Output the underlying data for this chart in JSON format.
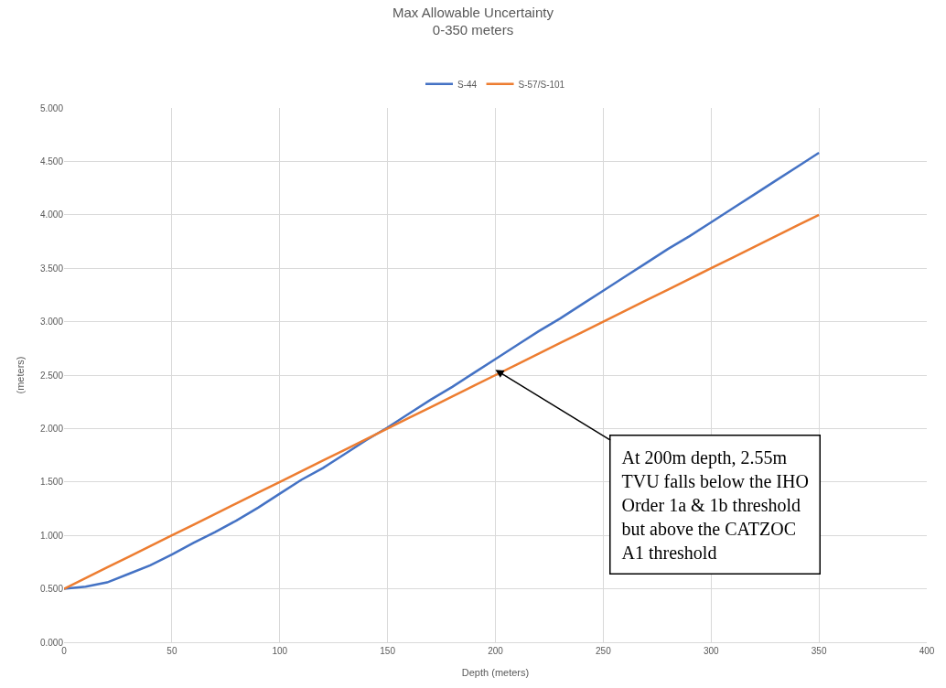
{
  "chart_data": {
    "type": "line",
    "title": "Max Allowable Uncertainty",
    "subtitle": "0-350 meters",
    "xlabel": "Depth (meters)",
    "ylabel": "(meters)",
    "x": [
      0,
      10,
      20,
      30,
      40,
      50,
      60,
      70,
      80,
      90,
      100,
      110,
      120,
      130,
      140,
      150,
      160,
      170,
      180,
      190,
      200,
      210,
      220,
      230,
      240,
      250,
      260,
      270,
      280,
      290,
      300,
      310,
      320,
      330,
      340,
      350
    ],
    "series": [
      {
        "name": "S-44",
        "color": "#4472c4",
        "values": [
          0.5,
          0.52,
          0.56,
          0.64,
          0.72,
          0.82,
          0.93,
          1.03,
          1.14,
          1.26,
          1.39,
          1.52,
          1.63,
          1.76,
          1.89,
          2.01,
          2.14,
          2.27,
          2.39,
          2.52,
          2.65,
          2.78,
          2.91,
          3.03,
          3.16,
          3.29,
          3.42,
          3.55,
          3.68,
          3.8,
          3.93,
          4.06,
          4.19,
          4.32,
          4.45,
          4.58
        ]
      },
      {
        "name": "S-57/S-101",
        "color": "#ed7d31",
        "values": [
          0.5,
          0.6,
          0.7,
          0.8,
          0.9,
          1.0,
          1.1,
          1.2,
          1.3,
          1.4,
          1.5,
          1.6,
          1.7,
          1.8,
          1.9,
          2.0,
          2.1,
          2.2,
          2.3,
          2.4,
          2.5,
          2.6,
          2.7,
          2.8,
          2.9,
          3.0,
          3.1,
          3.2,
          3.3,
          3.4,
          3.5,
          3.6,
          3.7,
          3.8,
          3.9,
          4.0
        ]
      }
    ],
    "xlim": [
      0,
      400
    ],
    "xticks": [
      0,
      50,
      100,
      150,
      200,
      250,
      300,
      350,
      400
    ],
    "ylim": [
      0,
      5
    ],
    "yticks": [
      {
        "value": 0,
        "label": "0.000"
      },
      {
        "value": 0.5,
        "label": "0.500"
      },
      {
        "value": 1,
        "label": "1.000"
      },
      {
        "value": 1.5,
        "label": "1.500"
      },
      {
        "value": 2,
        "label": "2.000"
      },
      {
        "value": 2.5,
        "label": "2.500"
      },
      {
        "value": 3,
        "label": "3.000"
      },
      {
        "value": 3.5,
        "label": "3.500"
      },
      {
        "value": 4,
        "label": "4.000"
      },
      {
        "value": 4.5,
        "label": "4.500"
      },
      {
        "value": 5,
        "label": "5.000"
      }
    ],
    "annotations": [
      {
        "text": "At 200m depth, 2.55m\nTVU falls below the IHO\nOrder 1a & 1b threshold\nbut above the CATZOC\nA1 threshold",
        "x": 200,
        "y": 2.55
      }
    ],
    "grid": true,
    "legend": "top",
    "marker": "none",
    "line_style": "solid"
  }
}
